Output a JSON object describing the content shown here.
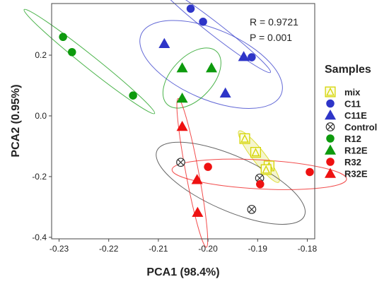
{
  "chart_data": {
    "type": "scatter",
    "xlabel": "PCA1 (98.4%)",
    "ylabel": "PCA2 (0.95%)",
    "xlim": [
      -0.2315,
      -0.1785
    ],
    "ylim": [
      -0.405,
      0.37
    ],
    "xticks": [
      -0.23,
      -0.22,
      -0.21,
      -0.2,
      -0.19,
      -0.18
    ],
    "xtick_labels": [
      "-0.23",
      "-0.22",
      "-0.21",
      "-0.20",
      "-0.19",
      "-0.18"
    ],
    "yticks": [
      0.2,
      0.0,
      -0.2,
      -0.4
    ],
    "ytick_labels": [
      "0.2",
      "0.0",
      "-0.2",
      "-0.4"
    ],
    "grid": false,
    "legend_position": "right",
    "legend_title": "Samples",
    "annotations": [
      "R = 0.9721",
      "P = 0.001"
    ],
    "series": [
      {
        "name": "mix",
        "marker": "open-triangle",
        "color": "#d4d400",
        "ellipse_fill": "#f3f3c6",
        "x": [
          -0.1926,
          -0.1904,
          -0.1877,
          -0.1883
        ],
        "y": [
          -0.075,
          -0.12,
          -0.165,
          -0.177
        ]
      },
      {
        "name": "C11",
        "marker": "circle",
        "color": "#2e35c8",
        "x": [
          -0.2035,
          -0.201,
          -0.1912
        ],
        "y": [
          0.353,
          0.31,
          0.193
        ]
      },
      {
        "name": "C11E",
        "marker": "triangle",
        "color": "#2e35c8",
        "x": [
          -0.2088,
          -0.1928,
          -0.1965
        ],
        "y": [
          0.238,
          0.195,
          0.075
        ]
      },
      {
        "name": "Control",
        "marker": "crossed-circle",
        "color": "#333333",
        "x": [
          -0.2055,
          -0.1896,
          -0.1912
        ],
        "y": [
          -0.153,
          -0.205,
          -0.308
        ]
      },
      {
        "name": "R12",
        "marker": "circle",
        "color": "#0d9a0d",
        "x": [
          -0.2292,
          -0.2274,
          -0.2151
        ],
        "y": [
          0.26,
          0.21,
          0.067
        ]
      },
      {
        "name": "R12E",
        "marker": "triangle",
        "color": "#0d9a0d",
        "x": [
          -0.2052,
          -0.1993,
          -0.2052
        ],
        "y": [
          0.158,
          0.158,
          0.058
        ]
      },
      {
        "name": "R32",
        "marker": "circle",
        "color": "#ee1111",
        "x": [
          -0.2,
          -0.1895,
          -0.1795
        ],
        "y": [
          -0.168,
          -0.225,
          -0.185
        ]
      },
      {
        "name": "R32E",
        "marker": "triangle",
        "color": "#ee1111",
        "x": [
          -0.2052,
          -0.2022,
          -0.2021
        ],
        "y": [
          -0.035,
          -0.21,
          -0.318
        ]
      }
    ]
  }
}
